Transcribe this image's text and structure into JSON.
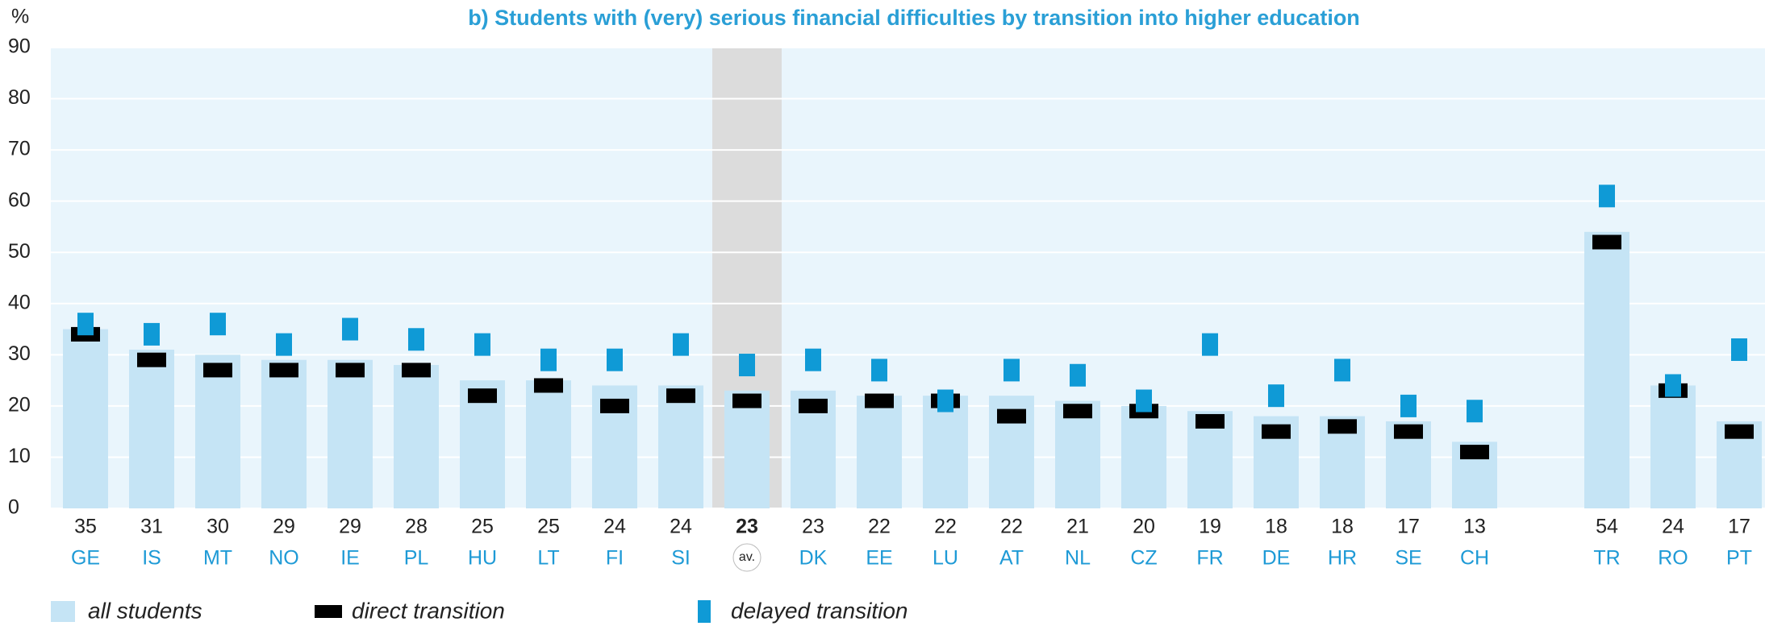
{
  "chart_data": {
    "type": "bar",
    "title": "b) Students with (very) serious financial difficulties by transition into higher education",
    "y_label": "%",
    "categories": [
      "GE",
      "IS",
      "MT",
      "NO",
      "IE",
      "PL",
      "HU",
      "LT",
      "FI",
      "SI",
      "av.",
      "DK",
      "EE",
      "LU",
      "AT",
      "NL",
      "CZ",
      "FR",
      "DE",
      "HR",
      "SE",
      "CH",
      null,
      "TR",
      "RO",
      "PT"
    ],
    "series": [
      {
        "name": "all students",
        "color": "#c5e4f5",
        "values": [
          35,
          31,
          30,
          29,
          29,
          28,
          25,
          25,
          24,
          24,
          23,
          23,
          22,
          22,
          22,
          21,
          20,
          19,
          18,
          18,
          17,
          13,
          null,
          54,
          24,
          17
        ]
      },
      {
        "name": "direct transition",
        "color": "#000000",
        "values": [
          34,
          29,
          27,
          27,
          27,
          27,
          22,
          24,
          20,
          22,
          21,
          20,
          21,
          21,
          18,
          19,
          19,
          17,
          15,
          16,
          15,
          11,
          null,
          52,
          23,
          15
        ]
      },
      {
        "name": "delayed transition",
        "color": "#0f9ad6",
        "values": [
          36,
          34,
          36,
          32,
          35,
          33,
          32,
          29,
          29,
          32,
          28,
          29,
          27,
          21,
          27,
          26,
          21,
          32,
          22,
          27,
          20,
          19,
          null,
          61,
          24,
          31
        ]
      }
    ],
    "highlight": 10,
    "ylim": [
      0,
      90
    ],
    "yticks": [
      0,
      10,
      20,
      30,
      40,
      50,
      60,
      70,
      80,
      90
    ],
    "grid": true
  }
}
